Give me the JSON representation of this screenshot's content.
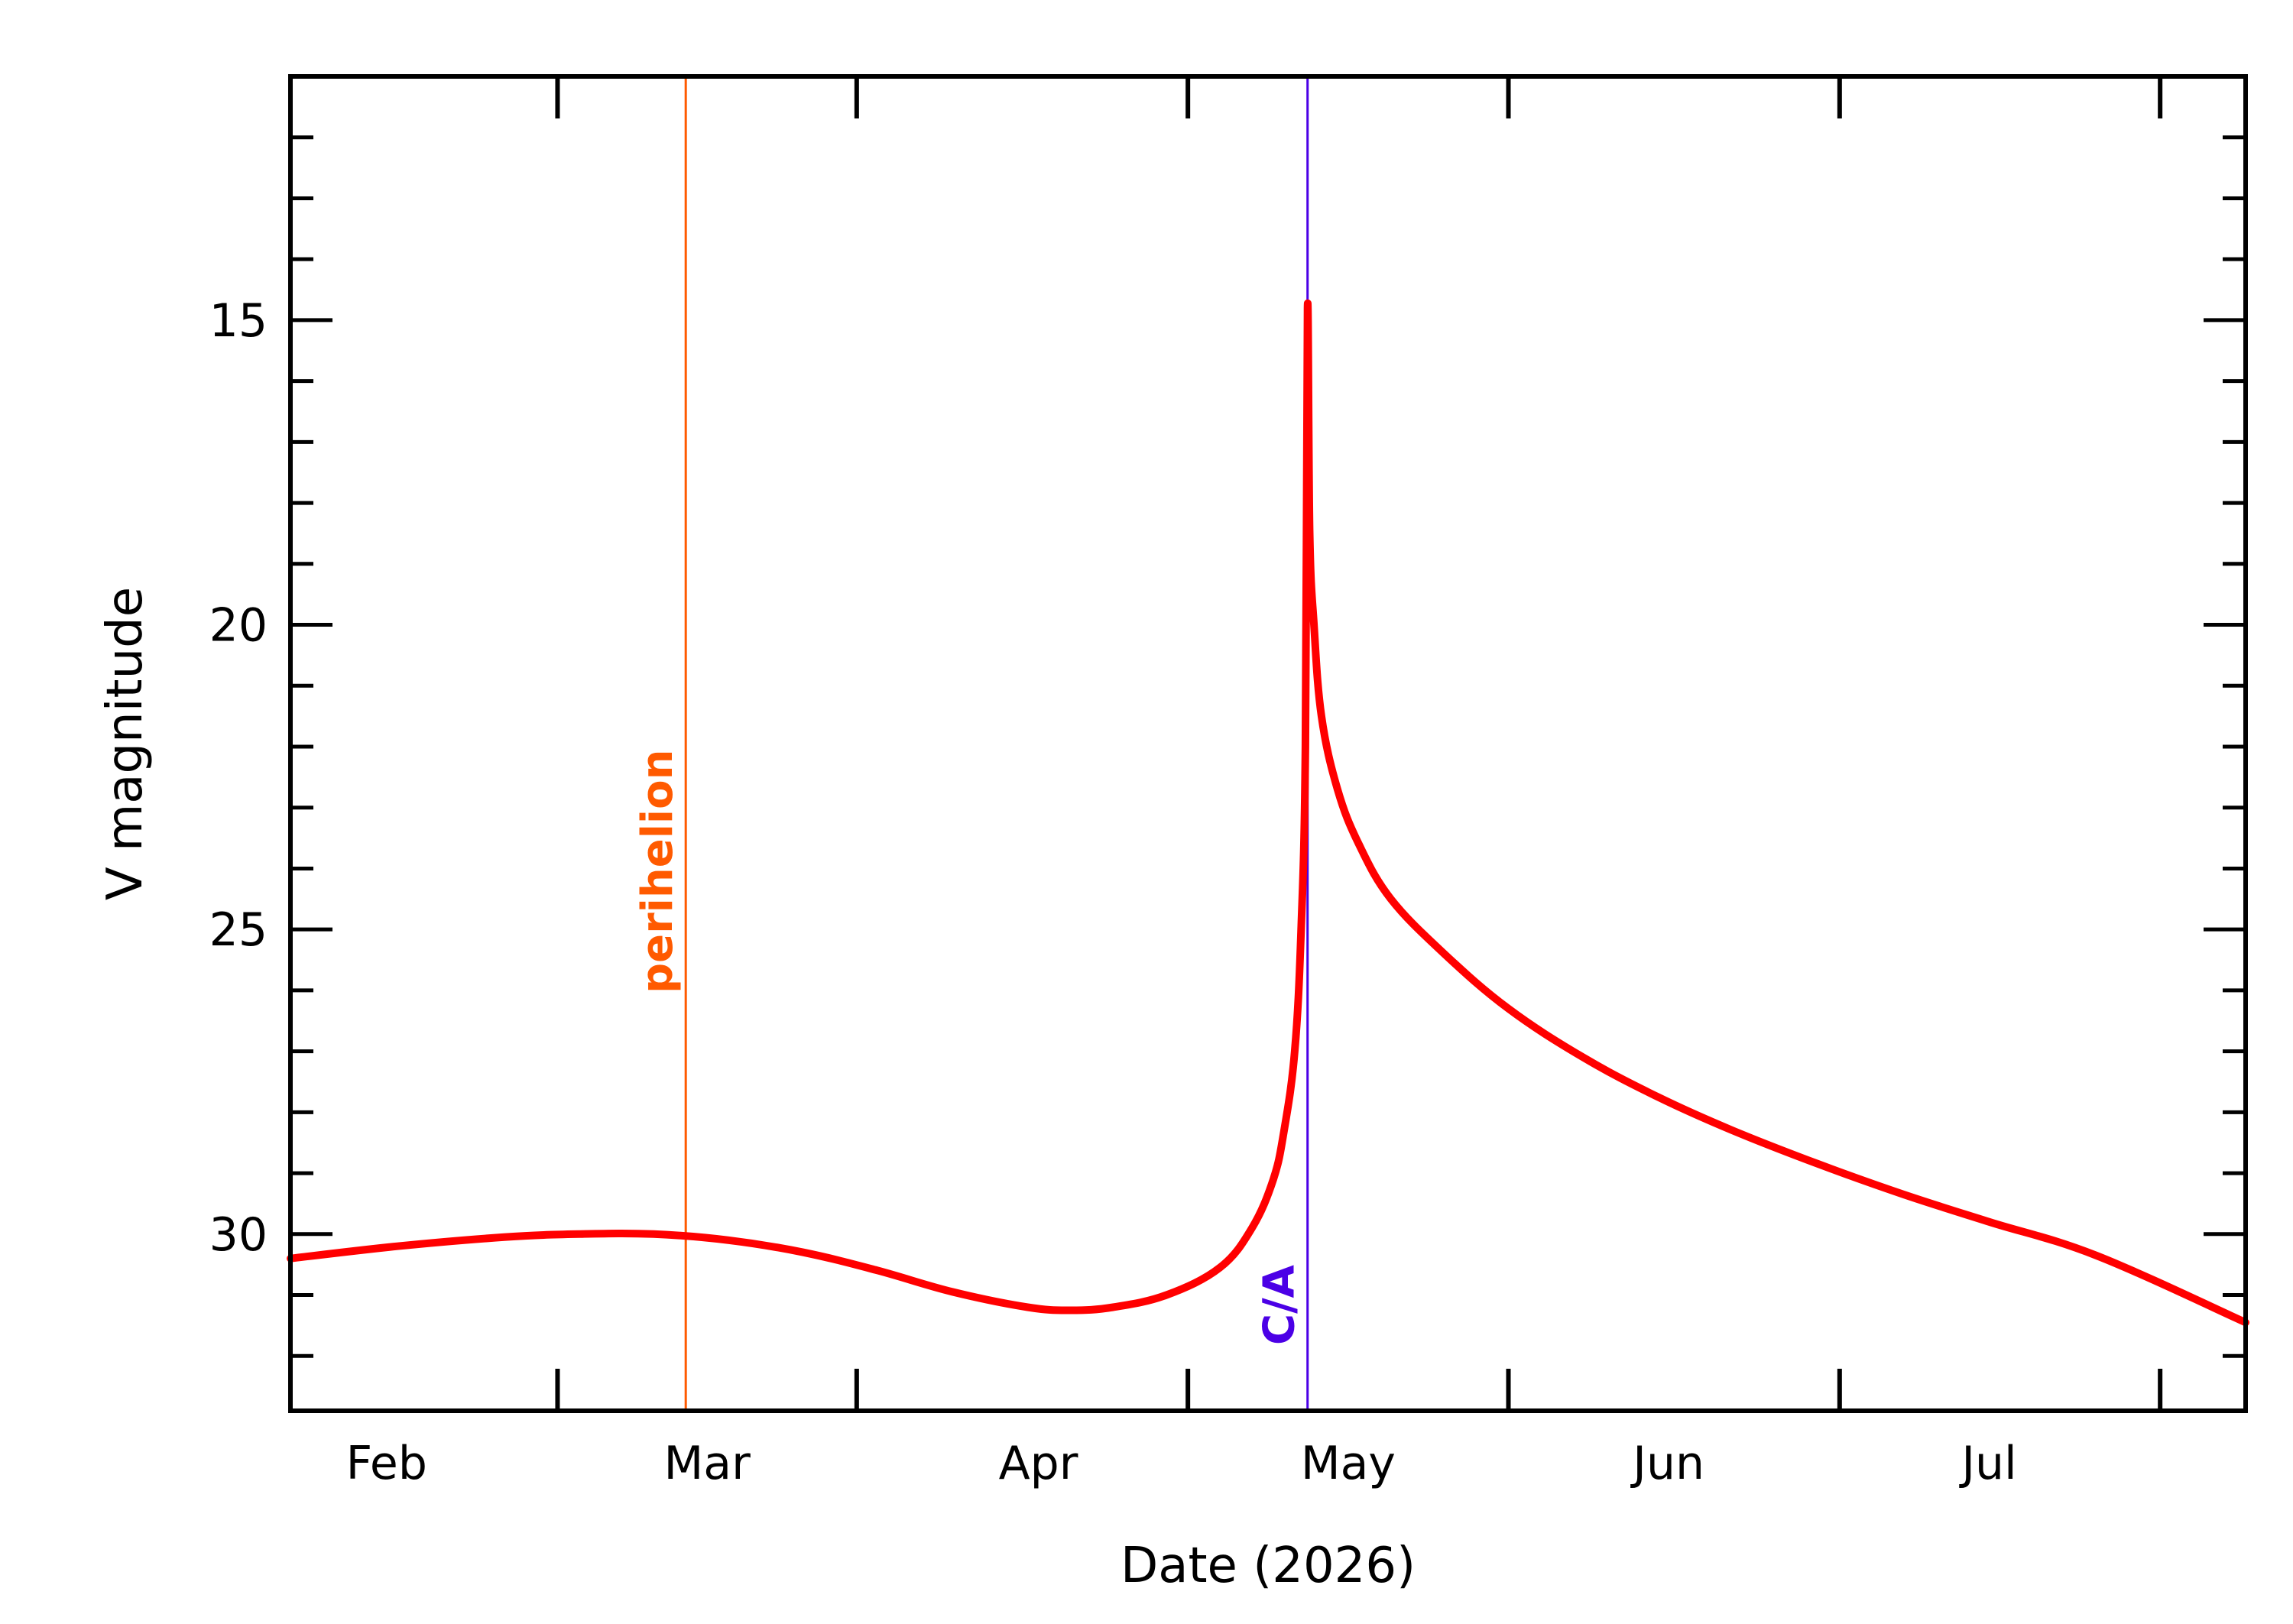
{
  "chart_data": {
    "type": "line",
    "title": "",
    "xlabel": "Date (2026)",
    "ylabel": "V magnitude",
    "ylim": [
      32.9,
      11
    ],
    "y_inverted": true,
    "yticks_major": [
      15,
      20,
      25,
      30
    ],
    "xlim": [
      "2026-01-07",
      "2026-07-09"
    ],
    "month_ticks": [
      "2026-01-01",
      "2026-02-01",
      "2026-03-01",
      "2026-04-01",
      "2026-05-01",
      "2026-06-01",
      "2026-07-01"
    ],
    "month_labels": [
      {
        "label": "Feb",
        "date": "2026-01-16"
      },
      {
        "label": "Mar",
        "date": "2026-02-15"
      },
      {
        "label": "Apr",
        "date": "2026-03-18"
      },
      {
        "label": "May",
        "date": "2026-04-16"
      },
      {
        "label": "Jun",
        "date": "2026-05-16"
      },
      {
        "label": "Jul",
        "date": "2026-06-15"
      }
    ],
    "grid": false,
    "series": [
      {
        "color": "#ff0000",
        "points": [
          [
            "2026-01-07",
            30.4
          ],
          [
            "2026-01-17",
            30.2
          ],
          [
            "2026-01-27",
            30.05
          ],
          [
            "2026-02-03",
            30.0
          ],
          [
            "2026-02-10",
            30.0
          ],
          [
            "2026-02-17",
            30.1
          ],
          [
            "2026-02-24",
            30.3
          ],
          [
            "2026-03-03",
            30.6
          ],
          [
            "2026-03-10",
            30.95
          ],
          [
            "2026-03-17",
            31.2
          ],
          [
            "2026-03-21",
            31.25
          ],
          [
            "2026-03-25",
            31.2
          ],
          [
            "2026-03-30",
            31.0
          ],
          [
            "2026-04-04",
            30.55
          ],
          [
            "2026-04-07",
            29.9
          ],
          [
            "2026-04-09",
            29.1
          ],
          [
            "2026-04-10",
            28.3
          ],
          [
            "2026-04-11",
            27.0
          ],
          [
            "2026-04-11.6",
            25.0
          ],
          [
            "2026-04-12",
            22.0
          ],
          [
            "2026-04-12.2",
            14.8
          ],
          [
            "2026-04-12.4",
            18.5
          ],
          [
            "2026-04-12.8",
            20.0
          ],
          [
            "2026-04-13.5",
            21.5
          ],
          [
            "2026-04-15",
            22.7
          ],
          [
            "2026-04-17",
            23.6
          ],
          [
            "2026-04-20",
            24.5
          ],
          [
            "2026-04-25",
            25.4
          ],
          [
            "2026-05-01",
            26.3
          ],
          [
            "2026-05-08",
            27.1
          ],
          [
            "2026-05-15",
            27.75
          ],
          [
            "2026-05-22",
            28.3
          ],
          [
            "2026-05-30",
            28.85
          ],
          [
            "2026-06-07",
            29.35
          ],
          [
            "2026-06-15",
            29.8
          ],
          [
            "2026-06-25",
            30.35
          ],
          [
            "2026-07-09",
            31.45
          ]
        ]
      }
    ],
    "markers": [
      {
        "label": "perihelion",
        "date": "2026-02-13",
        "color": "#ff5a00"
      },
      {
        "label": "C/A",
        "date": "2026-04-12.2",
        "color": "#4b00e6"
      }
    ]
  }
}
